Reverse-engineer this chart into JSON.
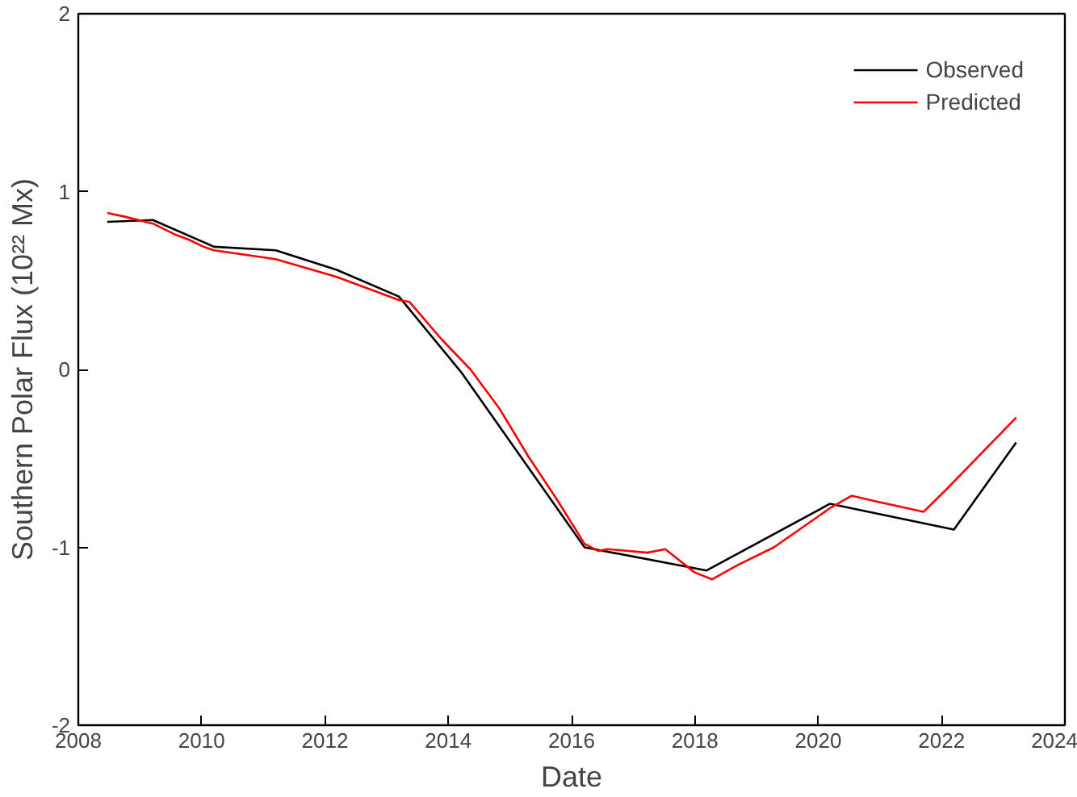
{
  "chart_data": {
    "type": "line",
    "xlabel": "Date",
    "ylabel": "Southern Polar Flux (10²² Mx)",
    "xlim": [
      2008,
      2024
    ],
    "xticks": [
      2008,
      2010,
      2012,
      2014,
      2016,
      2018,
      2020,
      2022,
      2024
    ],
    "ylim": [
      -2,
      2
    ],
    "yticks": [
      -2,
      -1,
      0,
      1,
      2
    ],
    "grid": false,
    "legend": "top right",
    "marker": "none",
    "line_style": "solid",
    "series": [
      {
        "name": "Observed",
        "color": "#000000",
        "x": [
          2008.47,
          2009.21,
          2010.2,
          2011.2,
          2012.19,
          2013.2,
          2014.22,
          2016.21,
          2018.19,
          2020.19,
          2022.2,
          2023.21
        ],
        "values": [
          0.83,
          0.84,
          0.69,
          0.67,
          0.56,
          0.41,
          -0.02,
          -1.0,
          -1.13,
          -0.755,
          -0.9,
          -0.41
        ]
      },
      {
        "name": "Predicted",
        "color": "#ff0000",
        "x": [
          2008.47,
          2008.74,
          2009.21,
          2009.56,
          2009.79,
          2010.03,
          2010.2,
          2010.61,
          2011.2,
          2012.19,
          2013.2,
          2013.37,
          2013.89,
          2014.36,
          2014.83,
          2015.3,
          2015.76,
          2016.21,
          2016.43,
          2016.58,
          2017.23,
          2017.52,
          2017.99,
          2018.28,
          2018.69,
          2019.28,
          2020.19,
          2020.54,
          2020.92,
          2021.71,
          2022.09,
          2023.21
        ],
        "values": [
          0.88,
          0.86,
          0.82,
          0.76,
          0.73,
          0.69,
          0.67,
          0.65,
          0.62,
          0.52,
          0.39,
          0.38,
          0.17,
          0.0,
          -0.22,
          -0.49,
          -0.73,
          -0.98,
          -1.02,
          -1.01,
          -1.03,
          -1.01,
          -1.14,
          -1.18,
          -1.1,
          -1.0,
          -0.78,
          -0.71,
          -0.74,
          -0.8,
          -0.67,
          -0.27
        ]
      }
    ]
  }
}
